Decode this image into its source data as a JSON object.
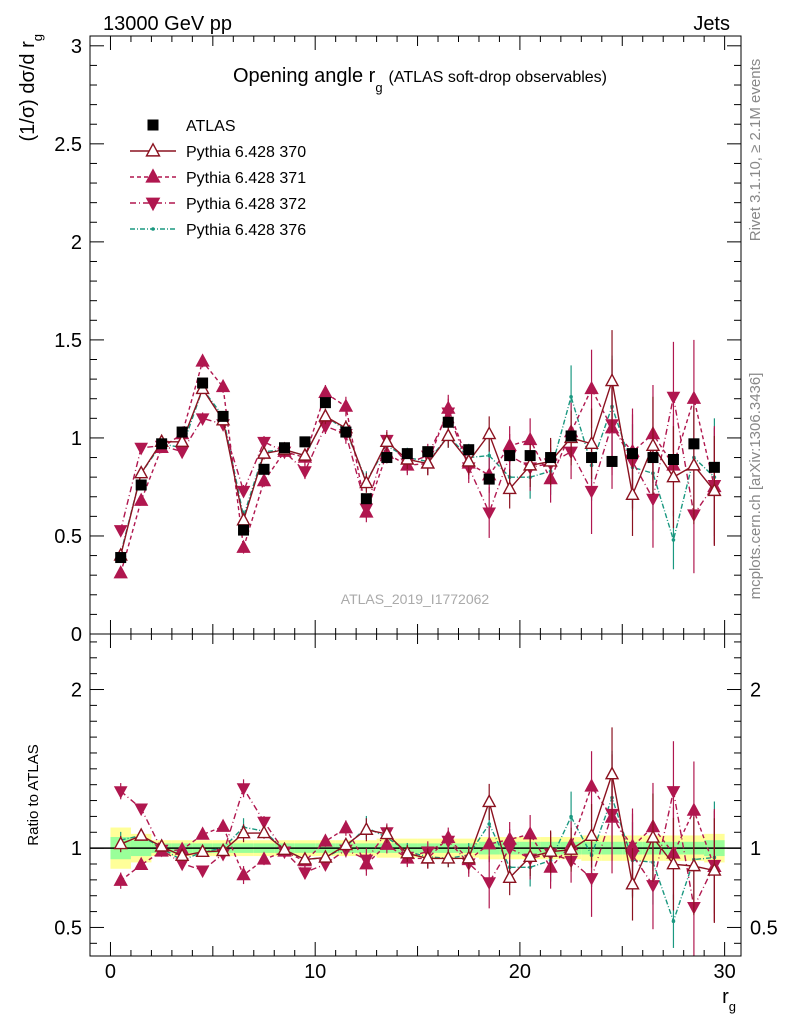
{
  "header": {
    "left": "13000 GeV pp",
    "right": "Jets"
  },
  "side_labels": {
    "rivet": "Rivet 3.1.10, ≥ 2.1M events",
    "mcplots": "mcplots.cern.ch [arXiv:1306.3436]"
  },
  "chart_data": {
    "type": "scatter",
    "title_main": "Opening angle r",
    "title_sub": "g",
    "title_note": "(ATLAS soft-drop observables)",
    "watermark": "ATLAS_2019_I1772062",
    "x": [
      0.5,
      1.5,
      2.5,
      3.5,
      4.5,
      5.5,
      6.5,
      7.5,
      8.5,
      9.5,
      10.5,
      11.5,
      12.5,
      13.5,
      14.5,
      15.5,
      16.5,
      17.5,
      18.5,
      19.5,
      20.5,
      21.5,
      22.5,
      23.5,
      24.5,
      25.5,
      26.5,
      27.5,
      28.5,
      29.5
    ],
    "xlim": [
      -1,
      30.8
    ],
    "xticks": [
      0,
      10,
      20,
      30
    ],
    "xlabel_main": "r",
    "xlabel_sub": "g",
    "main": {
      "ylabel_main": "(1/σ) dσ/d r",
      "ylabel_sub": "g",
      "ylim": [
        0,
        3.05
      ],
      "yticks": [
        "0",
        "0.5",
        "1",
        "1.5",
        "2",
        "2.5",
        "3"
      ],
      "ytick_values": [
        0,
        0.5,
        1,
        1.5,
        2,
        2.5,
        3
      ]
    },
    "ratio": {
      "ylabel": "Ratio to ATLAS",
      "ylim": [
        0.32,
        2.35
      ],
      "yticks": [
        "0.5",
        "1",
        "2"
      ],
      "ytick_values": [
        0.5,
        1,
        2
      ],
      "band_yellow": [
        0.13,
        0.09,
        0.05,
        0.05,
        0.05,
        0.05,
        0.05,
        0.05,
        0.05,
        0.05,
        0.05,
        0.05,
        0.05,
        0.06,
        0.06,
        0.06,
        0.06,
        0.06,
        0.07,
        0.07,
        0.07,
        0.07,
        0.07,
        0.08,
        0.08,
        0.08,
        0.08,
        0.08,
        0.08,
        0.09
      ],
      "band_green": [
        0.07,
        0.05,
        0.03,
        0.03,
        0.03,
        0.03,
        0.03,
        0.03,
        0.03,
        0.03,
        0.03,
        0.03,
        0.03,
        0.03,
        0.03,
        0.03,
        0.03,
        0.03,
        0.04,
        0.04,
        0.04,
        0.04,
        0.04,
        0.04,
        0.04,
        0.04,
        0.04,
        0.04,
        0.04,
        0.05
      ]
    },
    "series": [
      {
        "name": "ATLAS",
        "marker": "square",
        "color": "#000000",
        "values": [
          0.39,
          0.76,
          0.97,
          1.03,
          1.28,
          1.11,
          0.53,
          0.84,
          0.95,
          0.98,
          1.18,
          1.03,
          0.69,
          0.9,
          0.92,
          0.93,
          1.08,
          0.94,
          0.79,
          0.91,
          0.91,
          0.9,
          1.01,
          0.9,
          0.88,
          0.92,
          0.9,
          0.89,
          0.97,
          0.85
        ],
        "errors": [
          0,
          0,
          0,
          0,
          0,
          0,
          0,
          0,
          0,
          0,
          0,
          0,
          0,
          0,
          0,
          0,
          0,
          0,
          0,
          0,
          0,
          0,
          0,
          0,
          0,
          0,
          0,
          0,
          0,
          0
        ]
      },
      {
        "name": "Pythia 6.428 370",
        "marker": "triangle-up-open",
        "color": "#8b1220",
        "dash": "",
        "values": [
          0.4,
          0.82,
          0.98,
          0.98,
          1.25,
          1.09,
          0.58,
          0.92,
          0.94,
          0.91,
          1.11,
          1.05,
          0.77,
          0.98,
          0.89,
          0.87,
          1.01,
          0.88,
          1.02,
          0.74,
          0.86,
          0.88,
          1.0,
          0.97,
          1.29,
          0.71,
          0.96,
          0.8,
          0.86,
          0.73
        ],
        "errors": [
          0.02,
          0.02,
          0.02,
          0.02,
          0.02,
          0.02,
          0.03,
          0.03,
          0.03,
          0.03,
          0.04,
          0.04,
          0.05,
          0.05,
          0.05,
          0.06,
          0.06,
          0.07,
          0.09,
          0.1,
          0.11,
          0.12,
          0.14,
          0.18,
          0.26,
          0.21,
          0.25,
          0.26,
          0.3,
          0.28
        ]
      },
      {
        "name": "Pythia 6.428 371",
        "marker": "triangle-up",
        "color": "#b0174f",
        "dash": "4,3",
        "values": [
          0.31,
          0.68,
          0.95,
          1.02,
          1.39,
          1.26,
          0.44,
          0.78,
          0.93,
          0.9,
          1.23,
          1.16,
          0.62,
          0.92,
          0.86,
          0.87,
          1.15,
          0.87,
          0.81,
          0.96,
          0.99,
          0.79,
          1.03,
          1.25,
          1.05,
          0.93,
          1.02,
          0.86,
          1.2,
          0.75
        ],
        "errors": [
          0.02,
          0.02,
          0.02,
          0.02,
          0.03,
          0.03,
          0.03,
          0.03,
          0.03,
          0.04,
          0.04,
          0.05,
          0.05,
          0.05,
          0.05,
          0.06,
          0.07,
          0.08,
          0.09,
          0.1,
          0.11,
          0.12,
          0.15,
          0.2,
          0.24,
          0.22,
          0.25,
          0.26,
          0.3,
          0.3
        ]
      },
      {
        "name": "Pythia 6.428 372",
        "marker": "triangle-down",
        "color": "#b0174f",
        "dash": "6,3,1,3",
        "values": [
          0.53,
          0.95,
          0.96,
          0.93,
          1.1,
          1.07,
          0.73,
          0.98,
          0.93,
          0.83,
          1.06,
          1.02,
          0.64,
          0.99,
          0.87,
          0.91,
          1.13,
          0.85,
          0.62,
          0.91,
          0.85,
          0.87,
          0.93,
          0.73,
          1.07,
          0.88,
          0.69,
          1.21,
          0.61,
          0.76
        ],
        "errors": [
          0.02,
          0.02,
          0.02,
          0.02,
          0.03,
          0.03,
          0.03,
          0.03,
          0.03,
          0.04,
          0.04,
          0.05,
          0.05,
          0.05,
          0.05,
          0.06,
          0.07,
          0.08,
          0.13,
          0.11,
          0.12,
          0.12,
          0.14,
          0.22,
          0.33,
          0.24,
          0.25,
          0.28,
          0.3,
          0.3
        ]
      },
      {
        "name": "Pythia 6.428 376",
        "marker": "dot",
        "color": "#1a9880",
        "dash": "5,2,1,2",
        "values": [
          0.41,
          0.82,
          0.97,
          0.95,
          1.25,
          1.11,
          0.6,
          0.93,
          0.94,
          0.91,
          1.11,
          1.04,
          0.78,
          0.96,
          0.9,
          0.88,
          1.01,
          0.9,
          0.91,
          0.8,
          0.8,
          0.83,
          1.21,
          0.86,
          1.16,
          0.85,
          0.82,
          0.48,
          0.9,
          0.8
        ],
        "errors": [
          0.02,
          0.02,
          0.02,
          0.02,
          0.02,
          0.02,
          0.03,
          0.03,
          0.03,
          0.03,
          0.04,
          0.04,
          0.05,
          0.05,
          0.05,
          0.06,
          0.06,
          0.07,
          0.09,
          0.1,
          0.11,
          0.12,
          0.16,
          0.18,
          0.26,
          0.22,
          0.24,
          0.15,
          0.28,
          0.3
        ]
      }
    ]
  }
}
